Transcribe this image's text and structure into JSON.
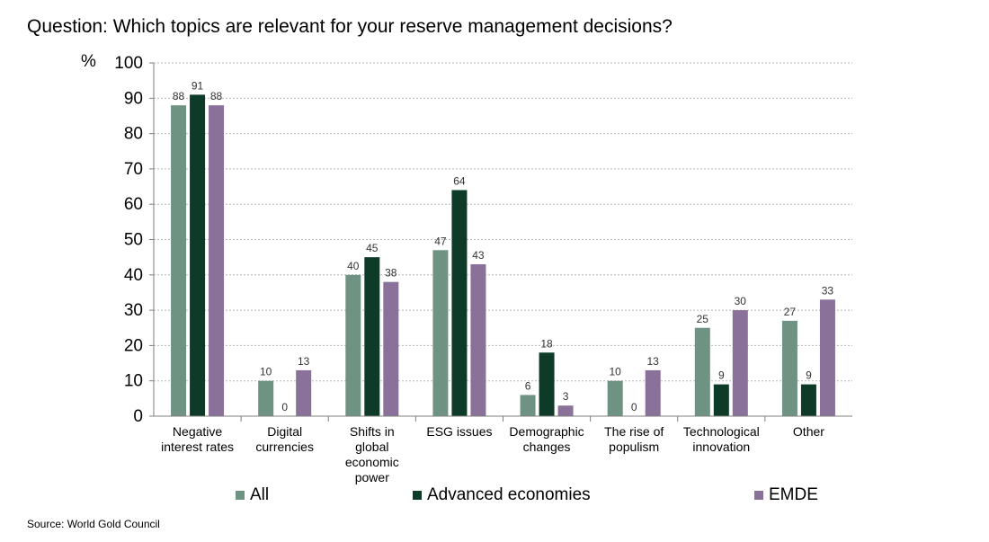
{
  "title": "Question: Which topics are relevant for your reserve management decisions?",
  "ylabel": "%",
  "source": "Source: World Gold Council",
  "chart_data": {
    "type": "bar",
    "categories": [
      [
        "Negative",
        "interest rates"
      ],
      [
        "Digital",
        "currencies"
      ],
      [
        "Shifts in",
        "global",
        "economic",
        "power"
      ],
      [
        "ESG issues"
      ],
      [
        "Demographic",
        "changes"
      ],
      [
        "The rise of",
        "populism"
      ],
      [
        "Technological",
        "innovation"
      ],
      [
        "Other"
      ]
    ],
    "series": [
      {
        "name": "All",
        "color": "#6f9383",
        "values": [
          88,
          10,
          40,
          47,
          6,
          10,
          25,
          27
        ]
      },
      {
        "name": "Advanced economies",
        "color": "#0d3b28",
        "values": [
          91,
          0,
          45,
          64,
          18,
          0,
          9,
          9
        ]
      },
      {
        "name": "EMDE",
        "color": "#8a7199",
        "values": [
          88,
          13,
          38,
          43,
          3,
          13,
          30,
          33
        ]
      }
    ],
    "ylim": [
      0,
      100
    ],
    "yticks": [
      0,
      10,
      20,
      30,
      40,
      50,
      60,
      70,
      80,
      90,
      100
    ],
    "grid": true,
    "legend": "bottom"
  }
}
